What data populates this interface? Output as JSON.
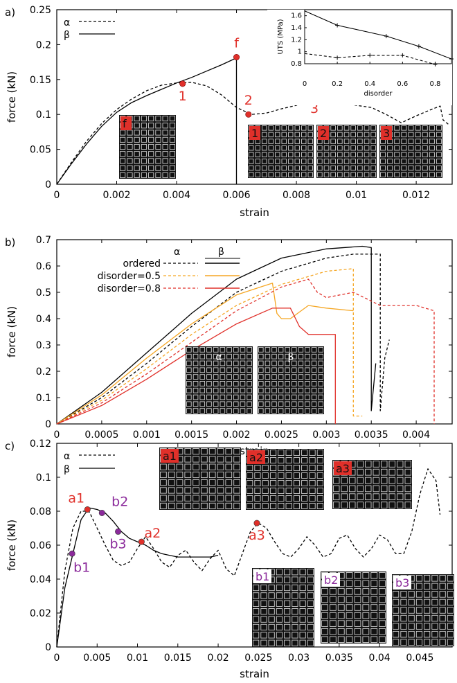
{
  "chart_data": [
    {
      "panel": "a)",
      "type": "line",
      "xlabel": "strain",
      "ylabel": "force (kN)",
      "xlim": [
        0,
        0.0132
      ],
      "ylim": [
        0,
        0.25
      ],
      "xticks": [
        "0",
        "0.002",
        "0.004",
        "0.006",
        "0.008",
        "0.01",
        "0.012"
      ],
      "yticks": [
        "0",
        "0.05",
        "0.1",
        "0.15",
        "0.2",
        "0.25"
      ],
      "legend": [
        "α",
        "β"
      ],
      "series": [
        {
          "name": "α",
          "style": "dashed",
          "x": [
            0,
            0.0005,
            0.001,
            0.0015,
            0.002,
            0.0025,
            0.003,
            0.0035,
            0.004,
            0.0045,
            0.005,
            0.0055,
            0.006,
            0.0065,
            0.007,
            0.0075,
            0.008,
            0.0085,
            0.009,
            0.0095,
            0.01,
            0.0105,
            0.011,
            0.0115,
            0.012,
            0.0125,
            0.0128,
            0.0129,
            0.0131
          ],
          "y": [
            0,
            0.032,
            0.062,
            0.087,
            0.107,
            0.122,
            0.134,
            0.142,
            0.145,
            0.146,
            0.141,
            0.128,
            0.11,
            0.1,
            0.102,
            0.108,
            0.113,
            0.126,
            0.12,
            0.118,
            0.113,
            0.11,
            0.1,
            0.088,
            0.098,
            0.107,
            0.112,
            0.092,
            0.085
          ]
        },
        {
          "name": "β",
          "style": "solid",
          "x": [
            0,
            0.0005,
            0.001,
            0.0015,
            0.002,
            0.0025,
            0.003,
            0.0035,
            0.004,
            0.0045,
            0.005,
            0.0055,
            0.006,
            0.006,
            0.006
          ],
          "y": [
            0,
            0.03,
            0.058,
            0.083,
            0.103,
            0.117,
            0.127,
            0.136,
            0.145,
            0.153,
            0.162,
            0.171,
            0.181,
            0.1,
            0.0
          ]
        }
      ],
      "markers": [
        {
          "label": "1",
          "x": 0.0042,
          "y": 0.144
        },
        {
          "label": "f",
          "x": 0.006,
          "y": 0.182
        },
        {
          "label": "2",
          "x": 0.0064,
          "y": 0.1
        },
        {
          "label": "3",
          "x": 0.0086,
          "y": 0.128
        }
      ],
      "snapshots": [
        "f",
        "1",
        "2",
        "3"
      ],
      "inset": {
        "type": "line",
        "xlabel": "disorder",
        "ylabel": "UTS (MPa)",
        "xlim": [
          0,
          0.9
        ],
        "ylim": [
          0.8,
          1.7
        ],
        "xticks": [
          "0",
          "0.2",
          "0.4",
          "0.6",
          "0.8"
        ],
        "yticks": [
          "0.8",
          "1",
          "1.2",
          "1.4",
          "1.6"
        ],
        "series": [
          {
            "name": "β",
            "style": "solid",
            "x": [
              0,
              0.2,
              0.5,
              0.7,
              0.9
            ],
            "y": [
              1.68,
              1.44,
              1.26,
              1.09,
              0.88
            ]
          },
          {
            "name": "α",
            "style": "dashed",
            "x": [
              0,
              0.2,
              0.4,
              0.6,
              0.8
            ],
            "y": [
              0.97,
              0.9,
              0.94,
              0.94,
              0.79
            ]
          }
        ]
      }
    },
    {
      "panel": "b)",
      "type": "line",
      "xlabel": "strain",
      "ylabel": "force (kN)",
      "xlim": [
        0,
        0.0044
      ],
      "ylim": [
        0,
        0.7
      ],
      "xticks": [
        "0",
        "0.0005",
        "0.001",
        "0.0015",
        "0.002",
        "0.0025",
        "0.003",
        "0.0035",
        "0.004"
      ],
      "yticks": [
        "0",
        "0.1",
        "0.2",
        "0.3",
        "0.4",
        "0.5",
        "0.6",
        "0.7"
      ],
      "legend_columns": [
        "α",
        "β"
      ],
      "legend_rows": [
        "ordered",
        "disorder=0.5",
        "disorder=0.8"
      ],
      "series": [
        {
          "name": "ordered",
          "group": "α",
          "color": "#000000",
          "style": "dashed",
          "x": [
            0,
            0.0005,
            0.001,
            0.0015,
            0.002,
            0.0025,
            0.003,
            0.0033,
            0.0036,
            0.0036,
            0.0036,
            0.00365,
            0.0037
          ],
          "y": [
            0,
            0.1,
            0.23,
            0.37,
            0.5,
            0.58,
            0.63,
            0.645,
            0.645,
            0.3,
            0.05,
            0.25,
            0.32
          ]
        },
        {
          "name": "ordered",
          "group": "β",
          "color": "#000000",
          "style": "solid",
          "x": [
            0,
            0.0005,
            0.001,
            0.0015,
            0.002,
            0.0025,
            0.003,
            0.0034,
            0.0035,
            0.0035,
            0.0035,
            0.00355
          ],
          "y": [
            0,
            0.12,
            0.27,
            0.42,
            0.55,
            0.63,
            0.665,
            0.675,
            0.67,
            0.3,
            0.05,
            0.23
          ]
        },
        {
          "name": "disorder=0.5",
          "group": "α",
          "color": "#f5a623",
          "style": "dashed",
          "x": [
            0,
            0.0005,
            0.001,
            0.0015,
            0.002,
            0.0025,
            0.003,
            0.0033,
            0.0033,
            0.0034
          ],
          "y": [
            0,
            0.09,
            0.21,
            0.34,
            0.45,
            0.53,
            0.58,
            0.59,
            0.03,
            0.03
          ]
        },
        {
          "name": "disorder=0.5",
          "group": "β",
          "color": "#f5a623",
          "style": "solid",
          "x": [
            0,
            0.0005,
            0.001,
            0.0015,
            0.002,
            0.0024,
            0.00245,
            0.0025,
            0.0026,
            0.0028,
            0.003,
            0.0033
          ],
          "y": [
            0,
            0.11,
            0.25,
            0.38,
            0.49,
            0.535,
            0.42,
            0.4,
            0.4,
            0.45,
            0.44,
            0.43
          ]
        },
        {
          "name": "disorder=0.8",
          "group": "α",
          "color": "#e0302a",
          "style": "dashed",
          "x": [
            0,
            0.0005,
            0.001,
            0.0015,
            0.002,
            0.0025,
            0.0028,
            0.0029,
            0.003,
            0.0033,
            0.0036,
            0.004,
            0.0042,
            0.0042
          ],
          "y": [
            0,
            0.08,
            0.19,
            0.31,
            0.43,
            0.52,
            0.55,
            0.5,
            0.48,
            0.5,
            0.45,
            0.45,
            0.43,
            0.0
          ]
        },
        {
          "name": "disorder=0.8",
          "group": "β",
          "color": "#e0302a",
          "style": "solid",
          "x": [
            0,
            0.0005,
            0.001,
            0.0015,
            0.002,
            0.0024,
            0.0026,
            0.0027,
            0.0028,
            0.003,
            0.0031,
            0.0031
          ],
          "y": [
            0,
            0.07,
            0.17,
            0.28,
            0.38,
            0.44,
            0.44,
            0.37,
            0.34,
            0.34,
            0.34,
            0.0
          ]
        }
      ],
      "snapshots": [
        "α",
        "β"
      ]
    },
    {
      "panel": "c)",
      "type": "line",
      "xlabel": "strain",
      "ylabel": "force (kN)",
      "xlim": [
        0,
        0.049
      ],
      "ylim": [
        0,
        0.12
      ],
      "xticks": [
        "0",
        "0.005",
        "0.01",
        "0.015",
        "0.02",
        "0.025",
        "0.03",
        "0.035",
        "0.04",
        "0.045"
      ],
      "yticks": [
        "0",
        "0.02",
        "0.04",
        "0.06",
        "0.08",
        "0.1",
        "0.12"
      ],
      "legend": [
        "α",
        "β"
      ],
      "series": [
        {
          "name": "α",
          "style": "dashed",
          "x": [
            0,
            0.001,
            0.002,
            0.003,
            0.004,
            0.005,
            0.006,
            0.007,
            0.008,
            0.009,
            0.01,
            0.011,
            0.012,
            0.013,
            0.014,
            0.015,
            0.016,
            0.017,
            0.018,
            0.019,
            0.02,
            0.021,
            0.022,
            0.023,
            0.024,
            0.025,
            0.026,
            0.027,
            0.028,
            0.029,
            0.03,
            0.031,
            0.032,
            0.033,
            0.034,
            0.035,
            0.036,
            0.037,
            0.038,
            0.039,
            0.04,
            0.041,
            0.042,
            0.043,
            0.044,
            0.045,
            0.046,
            0.047,
            0.0475
          ],
          "y": [
            0,
            0.045,
            0.07,
            0.08,
            0.08,
            0.07,
            0.06,
            0.051,
            0.048,
            0.05,
            0.058,
            0.065,
            0.058,
            0.05,
            0.047,
            0.054,
            0.057,
            0.05,
            0.045,
            0.052,
            0.057,
            0.046,
            0.042,
            0.055,
            0.068,
            0.073,
            0.07,
            0.062,
            0.055,
            0.053,
            0.058,
            0.065,
            0.06,
            0.053,
            0.055,
            0.064,
            0.066,
            0.058,
            0.053,
            0.058,
            0.066,
            0.063,
            0.055,
            0.055,
            0.068,
            0.09,
            0.105,
            0.098,
            0.078
          ]
        },
        {
          "name": "β",
          "style": "solid",
          "x": [
            0,
            0.001,
            0.002,
            0.003,
            0.004,
            0.005,
            0.006,
            0.007,
            0.008,
            0.009,
            0.01,
            0.011,
            0.012,
            0.013,
            0.014,
            0.015,
            0.016,
            0.017,
            0.018,
            0.019,
            0.02
          ],
          "y": [
            0,
            0.035,
            0.055,
            0.075,
            0.082,
            0.081,
            0.079,
            0.074,
            0.068,
            0.064,
            0.062,
            0.06,
            0.057,
            0.055,
            0.054,
            0.053,
            0.053,
            0.053,
            0.053,
            0.053,
            0.054
          ]
        }
      ],
      "markers": [
        {
          "label": "a1",
          "x": 0.0038,
          "y": 0.081,
          "color": "#e0302a"
        },
        {
          "label": "a2",
          "x": 0.0105,
          "y": 0.062,
          "color": "#e0302a"
        },
        {
          "label": "a3",
          "x": 0.0248,
          "y": 0.073,
          "color": "#e0302a"
        },
        {
          "label": "b1",
          "x": 0.0019,
          "y": 0.055,
          "color": "#8b2a9b"
        },
        {
          "label": "b2",
          "x": 0.0056,
          "y": 0.079,
          "color": "#8b2a9b"
        },
        {
          "label": "b3",
          "x": 0.0076,
          "y": 0.068,
          "color": "#8b2a9b"
        }
      ],
      "snapshots": [
        "a1",
        "a2",
        "a3",
        "b1",
        "b2",
        "b3"
      ]
    }
  ],
  "panel_labels": [
    "a)",
    "b)",
    "c)"
  ],
  "colors": {
    "red": "#e0302a",
    "orange": "#f5a623",
    "purple": "#8b2a9b",
    "black": "#000000"
  }
}
